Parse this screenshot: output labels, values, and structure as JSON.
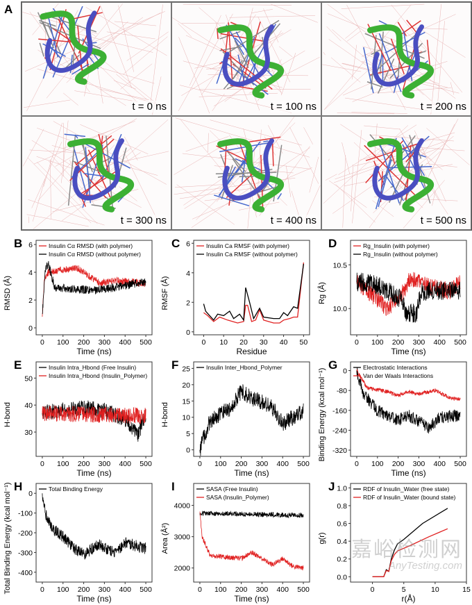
{
  "panel_a": {
    "label": "A",
    "snapshots": [
      "t = 0 ns",
      "t = 100 ns",
      "t = 200 ns",
      "t = 300 ns",
      "t = 400 ns",
      "t = 500 ns"
    ]
  },
  "watermark": {
    "cn": "嘉峪检测网",
    "en": "AnyTesting.com"
  },
  "chart_data": [
    {
      "panel": "B",
      "type": "line",
      "xlabel": "Time (ns)",
      "ylabel": "RMSD (Å)",
      "xlim": [
        -30,
        530
      ],
      "ylim": [
        -0.5,
        6.3
      ],
      "xticks": [
        0,
        100,
        200,
        300,
        400,
        500
      ],
      "yticks": [
        0,
        2,
        4,
        6
      ],
      "series": [
        {
          "name": "Insulin Cα RMSD (with polymer)",
          "color": "#e02020",
          "noise": 0.25,
          "points": [
            [
              0,
              0.8
            ],
            [
              10,
              3.5
            ],
            [
              30,
              4.0
            ],
            [
              100,
              4.2
            ],
            [
              170,
              4.3
            ],
            [
              220,
              3.8
            ],
            [
              280,
              3.2
            ],
            [
              350,
              3.4
            ],
            [
              450,
              3.3
            ],
            [
              500,
              3.1
            ]
          ]
        },
        {
          "name": "Insulin Cα RMSD (without polymer)",
          "color": "#000000",
          "noise": 0.3,
          "points": [
            [
              0,
              1.0
            ],
            [
              15,
              4.3
            ],
            [
              30,
              4.6
            ],
            [
              60,
              2.9
            ],
            [
              150,
              2.8
            ],
            [
              250,
              2.7
            ],
            [
              350,
              2.9
            ],
            [
              450,
              3.2
            ],
            [
              500,
              3.3
            ]
          ]
        }
      ]
    },
    {
      "panel": "C",
      "type": "line",
      "xlabel": "Residue",
      "ylabel": "RMSF (Å)",
      "xlim": [
        -5,
        53
      ],
      "ylim": [
        -0.2,
        6.2
      ],
      "xticks": [
        0,
        10,
        20,
        30,
        40,
        50
      ],
      "yticks": [
        0,
        2,
        4,
        6
      ],
      "series": [
        {
          "name": "Insulin Ca RMSF (with polymer)",
          "color": "#e02020",
          "noise": 0,
          "points": [
            [
              0,
              1.3
            ],
            [
              2,
              1.1
            ],
            [
              5,
              0.7
            ],
            [
              8,
              1.0
            ],
            [
              12,
              0.8
            ],
            [
              17,
              0.6
            ],
            [
              20,
              0.7
            ],
            [
              21,
              1.8
            ],
            [
              22,
              1.8
            ],
            [
              24,
              0.7
            ],
            [
              26,
              0.8
            ],
            [
              28,
              1.5
            ],
            [
              30,
              0.8
            ],
            [
              35,
              0.6
            ],
            [
              38,
              0.6
            ],
            [
              40,
              0.8
            ],
            [
              43,
              0.9
            ],
            [
              45,
              1.0
            ],
            [
              47,
              1.0
            ],
            [
              50,
              4.7
            ]
          ]
        },
        {
          "name": "Insulin Ca RMSF (without polymer)",
          "color": "#000000",
          "noise": 0,
          "points": [
            [
              0,
              1.9
            ],
            [
              1,
              1.4
            ],
            [
              5,
              0.8
            ],
            [
              7,
              1.2
            ],
            [
              10,
              1.1
            ],
            [
              13,
              1.4
            ],
            [
              15,
              0.9
            ],
            [
              18,
              1.2
            ],
            [
              20,
              0.8
            ],
            [
              21,
              3.0
            ],
            [
              23,
              2.0
            ],
            [
              25,
              0.9
            ],
            [
              28,
              1.6
            ],
            [
              30,
              1.0
            ],
            [
              35,
              0.9
            ],
            [
              38,
              0.9
            ],
            [
              40,
              1.3
            ],
            [
              42,
              1.1
            ],
            [
              45,
              1.7
            ],
            [
              47,
              1.6
            ],
            [
              50,
              4.6
            ]
          ]
        }
      ]
    },
    {
      "panel": "D",
      "type": "line",
      "xlabel": "Time (ns)",
      "ylabel": "Rg (Å)",
      "xlim": [
        -30,
        530
      ],
      "ylim": [
        9.7,
        10.78
      ],
      "xticks": [
        0,
        100,
        200,
        300,
        400,
        500
      ],
      "yticks": [
        10.0,
        10.5
      ],
      "series": [
        {
          "name": "Rg_Insulin (with polymer)",
          "color": "#e02020",
          "noise": 0.1,
          "points": [
            [
              0,
              10.3
            ],
            [
              50,
              10.2
            ],
            [
              150,
              10.0
            ],
            [
              230,
              10.2
            ],
            [
              260,
              10.35
            ],
            [
              350,
              10.25
            ],
            [
              450,
              10.2
            ],
            [
              500,
              10.3
            ]
          ]
        },
        {
          "name": "Rg_Insulin (without polymer)",
          "color": "#000000",
          "noise": 0.11,
          "points": [
            [
              0,
              10.3
            ],
            [
              60,
              10.3
            ],
            [
              150,
              10.2
            ],
            [
              220,
              10.1
            ],
            [
              240,
              9.95
            ],
            [
              290,
              9.95
            ],
            [
              310,
              10.2
            ],
            [
              500,
              10.2
            ]
          ]
        }
      ]
    },
    {
      "panel": "E",
      "type": "line",
      "xlabel": "Time (ns)",
      "ylabel": "H-bond",
      "xlim": [
        -30,
        530
      ],
      "ylim": [
        21,
        56
      ],
      "xticks": [
        0,
        100,
        200,
        300,
        400,
        500
      ],
      "yticks": [
        30,
        40,
        50
      ],
      "series": [
        {
          "name": "Insulin Intra_Hbond (Free Insulin)",
          "color": "#000000",
          "noise": 3,
          "points": [
            [
              0,
              37
            ],
            [
              200,
              39
            ],
            [
              300,
              38
            ],
            [
              400,
              35
            ],
            [
              460,
              29
            ],
            [
              500,
              36
            ]
          ]
        },
        {
          "name": "Insulin Intra_Hbond (Insulin_Polymer)",
          "color": "#e02020",
          "noise": 3,
          "points": [
            [
              0,
              37
            ],
            [
              500,
              36
            ]
          ]
        }
      ]
    },
    {
      "panel": "F",
      "type": "line",
      "xlabel": "Time (ns)",
      "ylabel": "H-bond",
      "xlim": [
        -30,
        530
      ],
      "ylim": [
        -2,
        27
      ],
      "xticks": [
        0,
        100,
        200,
        300,
        400,
        500
      ],
      "yticks": [
        0,
        5,
        10,
        15,
        20,
        25
      ],
      "series": [
        {
          "name": "Insulin Inter_Hbond_Polymer",
          "color": "#000000",
          "noise": 2.5,
          "points": [
            [
              0,
              0
            ],
            [
              20,
              4
            ],
            [
              50,
              9
            ],
            [
              150,
              13
            ],
            [
              200,
              18
            ],
            [
              250,
              16
            ],
            [
              350,
              13
            ],
            [
              400,
              8
            ],
            [
              500,
              12
            ]
          ]
        }
      ]
    },
    {
      "panel": "G",
      "type": "line",
      "xlabel": "Time (ns)",
      "ylabel": "Binding Energy (kcal mol⁻¹)",
      "xlim": [
        -30,
        530
      ],
      "ylim": [
        -345,
        35
      ],
      "xticks": [
        0,
        100,
        200,
        300,
        400,
        500
      ],
      "yticks": [
        0,
        -80,
        -160,
        -240,
        -320
      ],
      "series": [
        {
          "name": "Electrostatic Interactions",
          "color": "#000000",
          "noise": 25,
          "points": [
            [
              0,
              0
            ],
            [
              30,
              -90
            ],
            [
              100,
              -160
            ],
            [
              200,
              -200
            ],
            [
              250,
              -180
            ],
            [
              350,
              -230
            ],
            [
              400,
              -190
            ],
            [
              500,
              -180
            ]
          ]
        },
        {
          "name": "Van der Waals Interactions",
          "color": "#e02020",
          "noise": 8,
          "points": [
            [
              0,
              0
            ],
            [
              50,
              -70
            ],
            [
              150,
              -85
            ],
            [
              200,
              -100
            ],
            [
              250,
              -85
            ],
            [
              300,
              -95
            ],
            [
              380,
              -80
            ],
            [
              450,
              -110
            ],
            [
              500,
              -115
            ]
          ]
        }
      ]
    },
    {
      "panel": "H",
      "type": "line",
      "xlabel": "Time (ns)",
      "ylabel": "Total Binding Energy (kcal mol⁻¹)",
      "xlim": [
        -30,
        530
      ],
      "ylim": [
        -450,
        50
      ],
      "xticks": [
        0,
        100,
        200,
        300,
        400,
        500
      ],
      "yticks": [
        0,
        -100,
        -200,
        -300,
        -400
      ],
      "series": [
        {
          "name": "Total Binding Energy",
          "color": "#000000",
          "noise": 30,
          "points": [
            [
              0,
              0
            ],
            [
              20,
              -120
            ],
            [
              50,
              -180
            ],
            [
              100,
              -220
            ],
            [
              150,
              -280
            ],
            [
              200,
              -310
            ],
            [
              270,
              -260
            ],
            [
              350,
              -300
            ],
            [
              400,
              -250
            ],
            [
              500,
              -280
            ]
          ]
        }
      ]
    },
    {
      "panel": "I",
      "type": "line",
      "xlabel": "Time (ns)",
      "ylabel": "Area (Å²)",
      "xlim": [
        -30,
        530
      ],
      "ylim": [
        1550,
        4700
      ],
      "xticks": [
        0,
        100,
        200,
        300,
        400,
        500
      ],
      "yticks": [
        2000,
        3000,
        4000
      ],
      "series": [
        {
          "name": "SASA (Free Insulin)",
          "color": "#000000",
          "noise": 80,
          "points": [
            [
              0,
              3750
            ],
            [
              500,
              3680
            ]
          ]
        },
        {
          "name": "SASA (Insulin_Polymer)",
          "color": "#e02020",
          "noise": 80,
          "points": [
            [
              0,
              3800
            ],
            [
              10,
              3000
            ],
            [
              50,
              2400
            ],
            [
              200,
              2300
            ],
            [
              250,
              2500
            ],
            [
              350,
              2100
            ],
            [
              400,
              2300
            ],
            [
              450,
              2050
            ],
            [
              500,
              2000
            ]
          ]
        }
      ]
    },
    {
      "panel": "J",
      "type": "line",
      "xlabel": "r(Å)",
      "ylabel": "g(r)",
      "xlim": [
        -3.5,
        15
      ],
      "ylim": [
        -0.06,
        1.05
      ],
      "xticks": [
        0,
        5,
        10,
        15
      ],
      "yticks": [
        0.0,
        0.2,
        0.4,
        0.6,
        0.8,
        1.0
      ],
      "series": [
        {
          "name": "RDF of Insulin_Water (free state)",
          "color": "#000000",
          "noise": 0,
          "points": [
            [
              0,
              0
            ],
            [
              1.8,
              0
            ],
            [
              2.2,
              0.08
            ],
            [
              2.6,
              0.06
            ],
            [
              3,
              0.2
            ],
            [
              3.5,
              0.3
            ],
            [
              4,
              0.37
            ],
            [
              5,
              0.42
            ],
            [
              8,
              0.6
            ],
            [
              12,
              0.77
            ]
          ]
        },
        {
          "name": "RDF of Insulin_Water (bound state)",
          "color": "#e02020",
          "noise": 0,
          "points": [
            [
              0,
              0
            ],
            [
              1.8,
              0
            ],
            [
              2.2,
              0.07
            ],
            [
              2.6,
              0.06
            ],
            [
              3,
              0.18
            ],
            [
              3.5,
              0.25
            ],
            [
              4,
              0.29
            ],
            [
              6,
              0.35
            ],
            [
              9,
              0.45
            ],
            [
              12,
              0.54
            ]
          ]
        }
      ]
    }
  ]
}
